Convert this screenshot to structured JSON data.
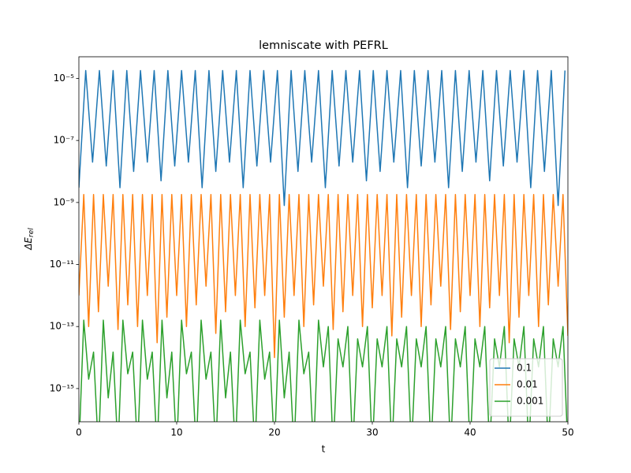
{
  "chart_data": {
    "type": "line",
    "title": "lemniscate with PEFRL",
    "xlabel": "t",
    "ylabel": "ΔE_rel",
    "yscale": "log",
    "xlim": [
      0,
      50
    ],
    "ylim": [
      8.5e-17,
      5e-05
    ],
    "xticks": [
      0,
      10,
      20,
      30,
      40,
      50
    ],
    "yticks": [
      {
        "value": 1e-15,
        "label": "10⁻¹⁵"
      },
      {
        "value": 1e-13,
        "label": "10⁻¹³"
      },
      {
        "value": 1e-11,
        "label": "10⁻¹¹"
      },
      {
        "value": 1e-09,
        "label": "10⁻⁹"
      },
      {
        "value": 1e-07,
        "label": "10⁻⁷"
      },
      {
        "value": 1e-05,
        "label": "10⁻⁵"
      }
    ],
    "legend": "lower right",
    "series": [
      {
        "name": "0.1",
        "color": "#1f77b4",
        "x": [
          0,
          0.7,
          1.4,
          2.1,
          2.8,
          3.5,
          4.2,
          4.9,
          5.6,
          6.3,
          7,
          7.7,
          8.4,
          9.1,
          9.8,
          10.5,
          11.2,
          11.9,
          12.6,
          13.3,
          14,
          14.7,
          15.4,
          16.1,
          16.8,
          17.5,
          18.2,
          18.9,
          19.6,
          20.3,
          21,
          21.7,
          22.4,
          23.1,
          23.8,
          24.5,
          25.2,
          25.9,
          26.6,
          27.3,
          28,
          28.7,
          29.4,
          30.1,
          30.8,
          31.5,
          32.2,
          32.9,
          33.6,
          34.3,
          35,
          35.7,
          36.4,
          37.1,
          37.8,
          38.5,
          39.2,
          39.9,
          40.6,
          41.3,
          42,
          42.7,
          43.4,
          44.1,
          44.8,
          45.5,
          46.2,
          46.9,
          47.6,
          48.3,
          49,
          49.7
        ],
        "values": [
          3e-09,
          1.8e-05,
          2e-08,
          1.8e-05,
          1.5e-08,
          1.8e-05,
          3e-09,
          1.8e-05,
          1e-08,
          1.8e-05,
          2e-08,
          1.8e-05,
          5e-09,
          1.8e-05,
          1.5e-08,
          1.8e-05,
          2e-08,
          1.8e-05,
          3e-09,
          1.8e-05,
          1e-08,
          1.8e-05,
          2e-08,
          1.8e-05,
          3e-09,
          1.8e-05,
          1.5e-08,
          1.8e-05,
          2e-08,
          1.8e-05,
          8e-10,
          1.8e-05,
          1e-08,
          1.8e-05,
          2e-08,
          1.8e-05,
          3e-09,
          1.8e-05,
          1.5e-08,
          1.8e-05,
          2e-08,
          1.8e-05,
          5e-09,
          1.8e-05,
          1e-08,
          1.8e-05,
          2e-08,
          1.8e-05,
          3e-09,
          1.8e-05,
          1.5e-08,
          1.8e-05,
          2e-08,
          1.8e-05,
          3e-09,
          1.8e-05,
          1e-08,
          1.8e-05,
          2e-08,
          1.8e-05,
          5e-09,
          1.8e-05,
          1.5e-08,
          1.8e-05,
          2e-08,
          1.8e-05,
          3e-09,
          1.8e-05,
          1e-08,
          1.8e-05,
          8e-10,
          1.8e-05
        ]
      },
      {
        "name": "0.01",
        "color": "#ff7f0e",
        "x": [
          0,
          0.5,
          1,
          1.5,
          2,
          2.5,
          3,
          3.5,
          4,
          4.5,
          5,
          5.5,
          6,
          6.5,
          7,
          7.5,
          8,
          8.5,
          9,
          9.5,
          10,
          10.5,
          11,
          11.5,
          12,
          12.5,
          13,
          13.5,
          14,
          14.5,
          15,
          15.5,
          16,
          16.5,
          17,
          17.5,
          18,
          18.5,
          19,
          19.5,
          20,
          20.5,
          21,
          21.5,
          22,
          22.5,
          23,
          23.5,
          24,
          24.5,
          25,
          25.5,
          26,
          26.5,
          27,
          27.5,
          28,
          28.5,
          29,
          29.5,
          30,
          30.5,
          31,
          31.5,
          32,
          32.5,
          33,
          33.5,
          34,
          34.5,
          35,
          35.5,
          36,
          36.5,
          37,
          37.5,
          38,
          38.5,
          39,
          39.5,
          40,
          40.5,
          41,
          41.5,
          42,
          42.5,
          43,
          43.5,
          44,
          44.5,
          45,
          45.5,
          46,
          46.5,
          47,
          47.5,
          48,
          48.5,
          49,
          49.5,
          50
        ],
        "values": [
          1e-12,
          1.8e-09,
          1e-13,
          1.8e-09,
          3e-13,
          1.8e-09,
          2e-12,
          1.8e-09,
          8e-14,
          1.8e-09,
          5e-13,
          1.8e-09,
          1e-13,
          1.8e-09,
          1e-12,
          1.8e-09,
          3e-14,
          1.8e-09,
          2e-13,
          1.8e-09,
          1e-12,
          1.8e-09,
          1e-13,
          1.8e-09,
          5e-13,
          1.8e-09,
          2e-12,
          1.8e-09,
          6e-14,
          1.8e-09,
          3e-13,
          1.8e-09,
          1e-12,
          1.8e-09,
          1e-13,
          1.8e-09,
          4e-13,
          1.8e-09,
          1e-12,
          1.8e-09,
          1e-14,
          1.8e-09,
          2e-13,
          1.8e-09,
          1e-12,
          1.8e-09,
          1e-13,
          1.8e-09,
          5e-13,
          1.8e-09,
          2e-12,
          1.8e-09,
          8e-14,
          1.8e-09,
          3e-13,
          1.8e-09,
          1e-12,
          1.8e-09,
          1e-13,
          1.8e-09,
          4e-13,
          1.8e-09,
          1e-12,
          1.8e-09,
          5e-14,
          1.8e-09,
          2e-13,
          1.8e-09,
          1e-12,
          1.8e-09,
          1e-13,
          1.8e-09,
          5e-13,
          1.8e-09,
          2e-12,
          1.8e-09,
          8e-14,
          1.8e-09,
          3e-13,
          1.8e-09,
          1e-12,
          1.8e-09,
          1e-13,
          1.8e-09,
          4e-13,
          1.8e-09,
          1e-12,
          1.8e-09,
          3e-14,
          1.8e-09,
          2e-13,
          1.8e-09,
          1e-12,
          1.8e-09,
          1e-13,
          1.8e-09,
          5e-13,
          1.8e-09,
          2e-12,
          1.8e-09,
          5e-14
        ]
      },
      {
        "name": "0.001",
        "color": "#2ca02c",
        "x": [
          0,
          0.5,
          1,
          1.5,
          2,
          2.5,
          3,
          3.5,
          4,
          4.5,
          5,
          5.5,
          6,
          6.5,
          7,
          7.5,
          8,
          8.5,
          9,
          9.5,
          10,
          10.5,
          11,
          11.5,
          12,
          12.5,
          13,
          13.5,
          14,
          14.5,
          15,
          15.5,
          16,
          16.5,
          17,
          17.5,
          18,
          18.5,
          19,
          19.5,
          20,
          20.5,
          21,
          21.5,
          22,
          22.5,
          23,
          23.5,
          24,
          24.5,
          25,
          25.5,
          26,
          26.5,
          27,
          27.5,
          28,
          28.5,
          29,
          29.5,
          30,
          30.5,
          31,
          31.5,
          32,
          32.5,
          33,
          33.5,
          34,
          34.5,
          35,
          35.5,
          36,
          36.5,
          37,
          37.5,
          38,
          38.5,
          39,
          39.5,
          40,
          40.5,
          41,
          41.5,
          42,
          42.5,
          43,
          43.5,
          44,
          44.5,
          45,
          45.5,
          46,
          46.5,
          47,
          47.5,
          48,
          48.5,
          49,
          49.5,
          50
        ],
        "values": [
          1e-17,
          1.6e-13,
          2e-15,
          1.5e-14,
          1e-17,
          1.6e-13,
          5e-16,
          1.5e-14,
          1e-17,
          1.6e-13,
          3e-15,
          1.5e-14,
          1e-17,
          1.6e-13,
          2e-15,
          1.5e-14,
          1e-17,
          1.6e-13,
          5e-16,
          1.5e-14,
          1e-17,
          1.6e-13,
          3e-15,
          1.5e-14,
          1e-17,
          1.6e-13,
          2e-15,
          1.5e-14,
          1e-17,
          1.6e-13,
          5e-16,
          1.5e-14,
          1e-17,
          1.6e-13,
          3e-15,
          1.5e-14,
          1e-17,
          1.6e-13,
          2e-15,
          1.5e-14,
          1e-17,
          1.6e-13,
          5e-16,
          1.5e-14,
          1e-17,
          1.6e-13,
          3e-15,
          1.5e-14,
          1e-17,
          1.6e-13,
          5e-15,
          1e-13,
          1e-17,
          4e-14,
          5e-15,
          1e-13,
          1e-17,
          4e-14,
          5e-15,
          1e-13,
          1e-17,
          4e-14,
          5e-15,
          1e-13,
          1e-17,
          4e-14,
          5e-15,
          1e-13,
          1e-17,
          4e-14,
          5e-15,
          1e-13,
          1e-17,
          4e-14,
          5e-15,
          1e-13,
          1e-17,
          4e-14,
          5e-15,
          1e-13,
          1e-17,
          4e-14,
          5e-15,
          1e-13,
          1e-17,
          4e-14,
          5e-15,
          1e-13,
          1e-17,
          4e-14,
          5e-15,
          1e-13,
          1e-17,
          4e-14,
          5e-15,
          1e-13,
          1e-17,
          4e-14,
          5e-15,
          1e-13,
          1e-17
        ]
      }
    ]
  }
}
